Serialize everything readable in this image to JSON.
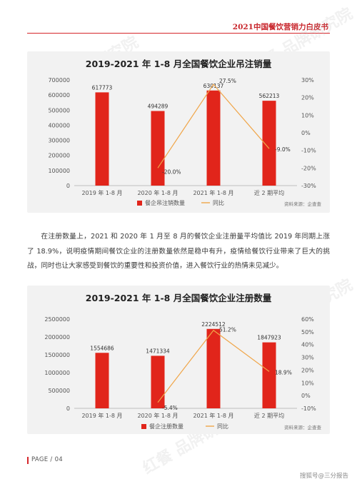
{
  "header": {
    "title": "2021中国餐饮营销力白皮书"
  },
  "watermark": {
    "text": "红餐 品牌研究院"
  },
  "colors": {
    "accent": "#d6262b",
    "bar": "#e1251b",
    "line": "#f0a64a",
    "text": "#555555"
  },
  "chart1": {
    "legend_bar": "餐企吊注销数量",
    "legend_line": "同比",
    "source": "资料来源：企查查"
  },
  "chart2": {
    "legend_bar": "餐企注册数量",
    "legend_line": "同比",
    "source": "资料来源：企查查"
  },
  "paragraph": {
    "text": "在注册数量上，2021 和 2020 年 1 月至 8 月的餐饮企业注册量平均值比 2019 年同期上涨了 18.9%，说明疫情期间餐饮企业的注册数量依然是稳中有升，疫情给餐饮行业带来了巨大的挑战，同时也让大家感受到餐饮的重要性和投资价值，进入餐饮行业的热情未见减少。"
  },
  "footer": {
    "page": "PAGE / 04",
    "credit": "搜狐号@三分报告"
  },
  "chart_data": [
    {
      "type": "bar",
      "title": "2019-2021 年 1-8 月全国餐饮企业吊注销量",
      "categories": [
        "2019 年 1-8 月",
        "2020 年 1-8 月",
        "2021 年 1-8 月",
        "近 2 期平均"
      ],
      "series": [
        {
          "name": "餐企吊注销数量",
          "type": "bar",
          "axis": "left",
          "values": [
            617773,
            494289,
            630137,
            562213
          ],
          "labels": [
            "617773",
            "494289",
            "630137",
            "562213"
          ]
        },
        {
          "name": "同比",
          "type": "line",
          "axis": "right",
          "values": [
            null,
            -20.0,
            27.5,
            -9.0
          ],
          "labels": [
            "",
            "-20.0%",
            "27.5%",
            "-9.0%"
          ]
        }
      ],
      "yticks": [
        "700000",
        "600000",
        "500000",
        "400000",
        "300000",
        "200000",
        "100000",
        "0"
      ],
      "y2ticks": [
        "30%",
        "20%",
        "10%",
        "0%",
        "-10%",
        "-20%",
        "-30%"
      ],
      "ylim": [
        0,
        700000
      ],
      "y2lim": [
        -30,
        30
      ],
      "legend": "bottom",
      "grid": false
    },
    {
      "type": "bar",
      "title": "2019-2021 年 1-8 月全国餐饮企业注册数量",
      "categories": [
        "2019 年 1-8 月",
        "2020 年 1-8 月",
        "2021 年 1-8 月",
        "近 2 期平均"
      ],
      "series": [
        {
          "name": "餐企注册数量",
          "type": "bar",
          "axis": "left",
          "values": [
            1554686,
            1471334,
            2224512,
            1847923
          ],
          "labels": [
            "1554686",
            "1471334",
            "2224512",
            "1847923"
          ]
        },
        {
          "name": "同比",
          "type": "line",
          "axis": "right",
          "values": [
            null,
            -5.4,
            51.2,
            18.9
          ],
          "labels": [
            "",
            "-5.4%",
            "51.2%",
            "18.9%"
          ]
        }
      ],
      "yticks": [
        "2500000",
        "2000000",
        "1500000",
        "1000000",
        "500000",
        "0"
      ],
      "y2ticks": [
        "60%",
        "50%",
        "40%",
        "30%",
        "20%",
        "10%",
        "0%",
        "-10%"
      ],
      "ylim": [
        0,
        2500000
      ],
      "y2lim": [
        -10,
        60
      ],
      "legend": "bottom",
      "grid": false
    }
  ]
}
